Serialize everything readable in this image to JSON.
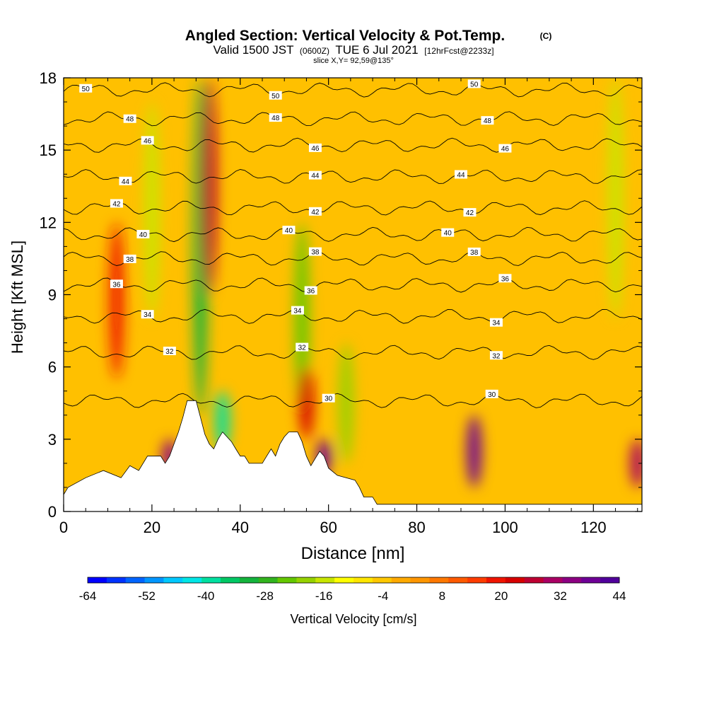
{
  "chart_data": {
    "type": "heatmap",
    "title": "Angled Section: Vertical Velocity & Pot.Temp.",
    "title_unit": "(C)",
    "subtitle_parts": [
      "Valid 1500 JST",
      "(0600Z)",
      "TUE 6 Jul 2021",
      "[12hrFcst@2233z]"
    ],
    "slice_label": "slice X,Y= 92,59@135°",
    "xlabel": "Distance [nm]",
    "ylabel": "Height [Kft MSL]",
    "xlim": [
      0,
      131
    ],
    "ylim": [
      0,
      18
    ],
    "x_ticks": [
      0,
      20,
      40,
      60,
      80,
      100,
      120
    ],
    "y_ticks": [
      0,
      3,
      6,
      9,
      12,
      15,
      18
    ],
    "grid": false,
    "colorbar": {
      "label": "Vertical Velocity [cm/s]",
      "tick_labels": [
        "-64",
        "-52",
        "-40",
        "-28",
        "-16",
        "-4",
        "8",
        "20",
        "32",
        "44"
      ],
      "min": -64,
      "max": 44,
      "colors": [
        "#0000ff",
        "#0032ff",
        "#0064ff",
        "#0096ff",
        "#00c8ff",
        "#00e6e6",
        "#00e0a0",
        "#00c864",
        "#14b43c",
        "#32b41e",
        "#64c800",
        "#96d200",
        "#c8e600",
        "#ffff00",
        "#ffe600",
        "#ffc800",
        "#ffaa00",
        "#ff9600",
        "#ff7800",
        "#ff5a00",
        "#ff3c00",
        "#f01400",
        "#d70000",
        "#be0032",
        "#aa0064",
        "#8c0082",
        "#6e0096",
        "#50009b"
      ]
    },
    "vertical_velocity_features": [
      {
        "x": 12,
        "y_range": [
          5.5,
          12
        ],
        "value": 18
      },
      {
        "x": 20,
        "y_range": [
          8,
          17
        ],
        "value": -16
      },
      {
        "x": 24,
        "y_range": [
          1.5,
          3
        ],
        "value": 36
      },
      {
        "x": 31,
        "y_range": [
          4,
          18
        ],
        "value": -30
      },
      {
        "x": 33,
        "y_range": [
          9,
          18
        ],
        "value": 28
      },
      {
        "x": 36,
        "y_range": [
          2.5,
          5
        ],
        "value": -40
      },
      {
        "x": 54,
        "y_range": [
          4,
          12
        ],
        "value": -22
      },
      {
        "x": 55,
        "y_range": [
          3,
          6
        ],
        "value": 24
      },
      {
        "x": 59,
        "y_range": [
          1.5,
          3
        ],
        "value": 40
      },
      {
        "x": 64,
        "y_range": [
          2,
          7
        ],
        "value": -20
      },
      {
        "x": 93,
        "y_range": [
          1,
          4
        ],
        "value": 38
      },
      {
        "x": 125,
        "y_range": [
          8,
          18
        ],
        "value": -14
      },
      {
        "x": 130,
        "y_range": [
          1,
          3
        ],
        "value": 30
      }
    ],
    "pot_temp_contours": [
      {
        "level": 30,
        "height": 4.6,
        "label": "30",
        "label_x": [
          60,
          97
        ]
      },
      {
        "level": 32,
        "height": 6.6,
        "label": "32",
        "label_x": [
          24,
          54,
          98
        ]
      },
      {
        "level": 34,
        "height": 8.1,
        "label": "34",
        "label_x": [
          19,
          53,
          98
        ]
      },
      {
        "level": 36,
        "height": 9.4,
        "label": "36",
        "label_x": [
          12,
          56,
          100
        ]
      },
      {
        "level": 38,
        "height": 10.5,
        "label": "38",
        "label_x": [
          15,
          57,
          93
        ]
      },
      {
        "level": 40,
        "height": 11.5,
        "label": "40",
        "label_x": [
          18,
          51,
          87
        ]
      },
      {
        "level": 42,
        "height": 12.6,
        "label": "42",
        "label_x": [
          12,
          57,
          92
        ]
      },
      {
        "level": 44,
        "height": 13.9,
        "label": "44",
        "label_x": [
          14,
          57,
          90
        ]
      },
      {
        "level": 46,
        "height": 15.2,
        "label": "46",
        "label_x": [
          19,
          57,
          100
        ]
      },
      {
        "level": 48,
        "height": 16.3,
        "label": "48",
        "label_x": [
          15,
          48,
          96
        ]
      },
      {
        "level": 50,
        "height": 17.5,
        "label": "50",
        "label_x": [
          5,
          48,
          93
        ]
      }
    ],
    "terrain": [
      [
        0,
        0.7
      ],
      [
        1,
        1
      ],
      [
        5,
        1.4
      ],
      [
        9,
        1.7
      ],
      [
        13,
        1.4
      ],
      [
        15,
        1.9
      ],
      [
        17,
        1.7
      ],
      [
        19,
        2.3
      ],
      [
        22,
        2.3
      ],
      [
        23,
        2
      ],
      [
        24,
        2.3
      ],
      [
        25,
        2.8
      ],
      [
        26,
        3.3
      ],
      [
        27,
        3.9
      ],
      [
        28,
        4.6
      ],
      [
        30,
        4.6
      ],
      [
        31,
        3.9
      ],
      [
        32,
        3.2
      ],
      [
        33,
        2.8
      ],
      [
        34,
        2.6
      ],
      [
        35,
        3
      ],
      [
        36,
        3.3
      ],
      [
        37,
        3.1
      ],
      [
        38,
        2.9
      ],
      [
        39,
        2.6
      ],
      [
        40,
        2.3
      ],
      [
        41,
        2.3
      ],
      [
        42,
        2
      ],
      [
        45,
        2
      ],
      [
        46,
        2.3
      ],
      [
        47,
        2.6
      ],
      [
        48,
        2.3
      ],
      [
        49,
        2.8
      ],
      [
        50,
        3.1
      ],
      [
        51,
        3.3
      ],
      [
        53,
        3.3
      ],
      [
        54,
        2.9
      ],
      [
        55,
        2.3
      ],
      [
        56,
        1.9
      ],
      [
        57,
        2.2
      ],
      [
        58,
        2.5
      ],
      [
        59,
        2.3
      ],
      [
        60,
        1.8
      ],
      [
        62,
        1.5
      ],
      [
        66,
        1.3
      ],
      [
        67,
        1
      ],
      [
        68,
        0.6
      ],
      [
        70,
        0.6
      ],
      [
        71,
        0.3
      ],
      [
        131,
        0.3
      ]
    ]
  }
}
